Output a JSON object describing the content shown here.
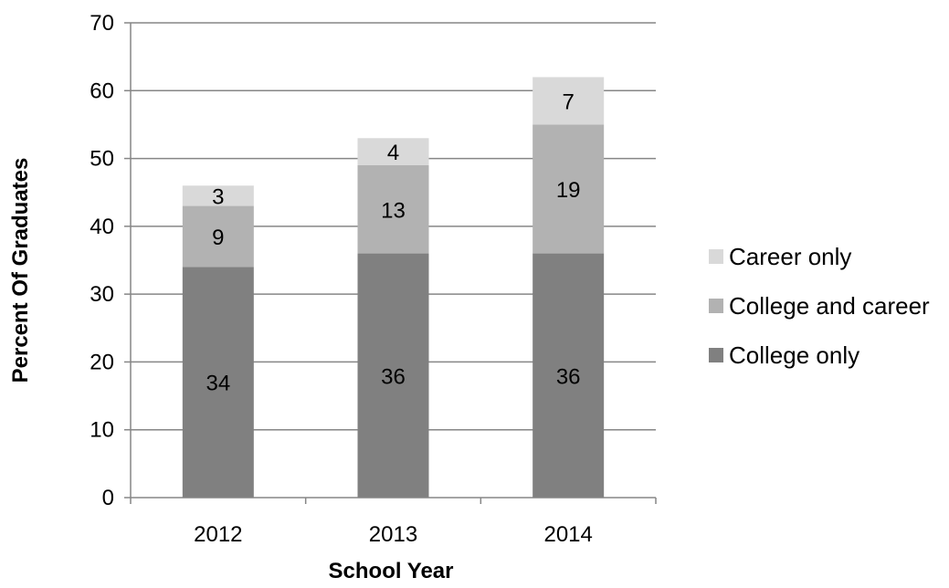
{
  "chart_data": {
    "type": "bar",
    "stacked": true,
    "categories": [
      "2012",
      "2013",
      "2014"
    ],
    "series": [
      {
        "name": "College only",
        "values": [
          34,
          36,
          36
        ],
        "color": "#808080"
      },
      {
        "name": "College and career",
        "values": [
          9,
          13,
          19
        ],
        "color": "#b2b2b2"
      },
      {
        "name": "Career only",
        "values": [
          3,
          4,
          7
        ],
        "color": "#d9d9d9"
      }
    ],
    "segment_labels": [
      [
        "34",
        "36",
        "36"
      ],
      [
        "9",
        "13",
        "19"
      ],
      [
        "3",
        "4",
        "7"
      ]
    ],
    "xlabel": "School Year",
    "ylabel": "Percent Of Graduates",
    "ylim": [
      0,
      70
    ],
    "yticks": [
      0,
      10,
      20,
      30,
      40,
      50,
      60,
      70
    ],
    "grid": true,
    "gridline_color": "#868686",
    "legend_position": "right",
    "legend_order": [
      "Career only",
      "College and career",
      "College only"
    ]
  }
}
